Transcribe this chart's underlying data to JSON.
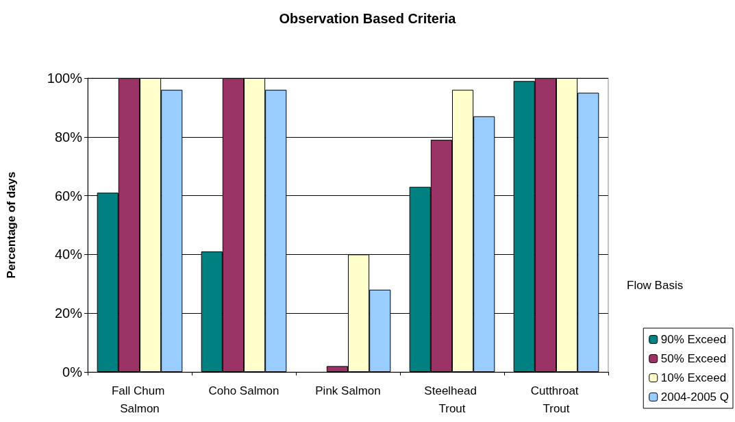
{
  "chart_data": {
    "type": "bar",
    "title": "Observation Based Criteria",
    "ylabel": "Percentage of days",
    "legend_title": "Flow Basis",
    "categories": [
      "Fall Chum Salmon",
      "Coho Salmon",
      "Pink Salmon",
      "Steelhead Trout",
      "Cutthroat Trout"
    ],
    "series": [
      {
        "name": "90% Exceed",
        "color": "#008080",
        "values": [
          61,
          41,
          0,
          63,
          99
        ]
      },
      {
        "name": "50% Exceed",
        "color": "#993366",
        "values": [
          100,
          100,
          2,
          79,
          100
        ]
      },
      {
        "name": "10% Exceed",
        "color": "#ffffcc",
        "values": [
          100,
          100,
          40,
          96,
          100
        ]
      },
      {
        "name": "2004-2005 Q",
        "color": "#99ccff",
        "values": [
          96,
          96,
          28,
          87,
          95
        ]
      }
    ],
    "ylim": [
      0,
      100
    ],
    "yticks": [
      {
        "value": 0,
        "label": "0%"
      },
      {
        "value": 20,
        "label": "20%"
      },
      {
        "value": 40,
        "label": "40%"
      },
      {
        "value": 60,
        "label": "60%"
      },
      {
        "value": 80,
        "label": "80%"
      },
      {
        "value": 100,
        "label": "100%"
      }
    ],
    "grid": "y",
    "legend": "bottom right"
  }
}
